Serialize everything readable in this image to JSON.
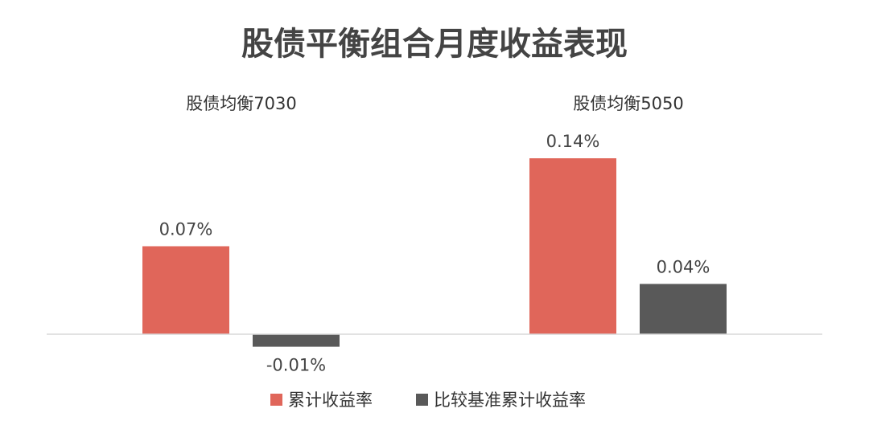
{
  "chart_data": {
    "type": "bar",
    "title": "股债平衡组合月度收益表现",
    "categories": [
      "股债均衡7030",
      "股债均衡5050"
    ],
    "series": [
      {
        "name": "累计收益率",
        "color": "#e0665a",
        "values": [
          0.07,
          0.14
        ],
        "labels": [
          "0.07%",
          "0.14%"
        ]
      },
      {
        "name": "比较基准累计收益率",
        "color": "#595959",
        "values": [
          -0.01,
          0.04
        ],
        "labels": [
          "-0.01%",
          "0.04%"
        ]
      }
    ],
    "unit": "%",
    "ylim": [
      -0.01,
      0.14
    ],
    "grid": false,
    "legend_position": "bottom"
  }
}
